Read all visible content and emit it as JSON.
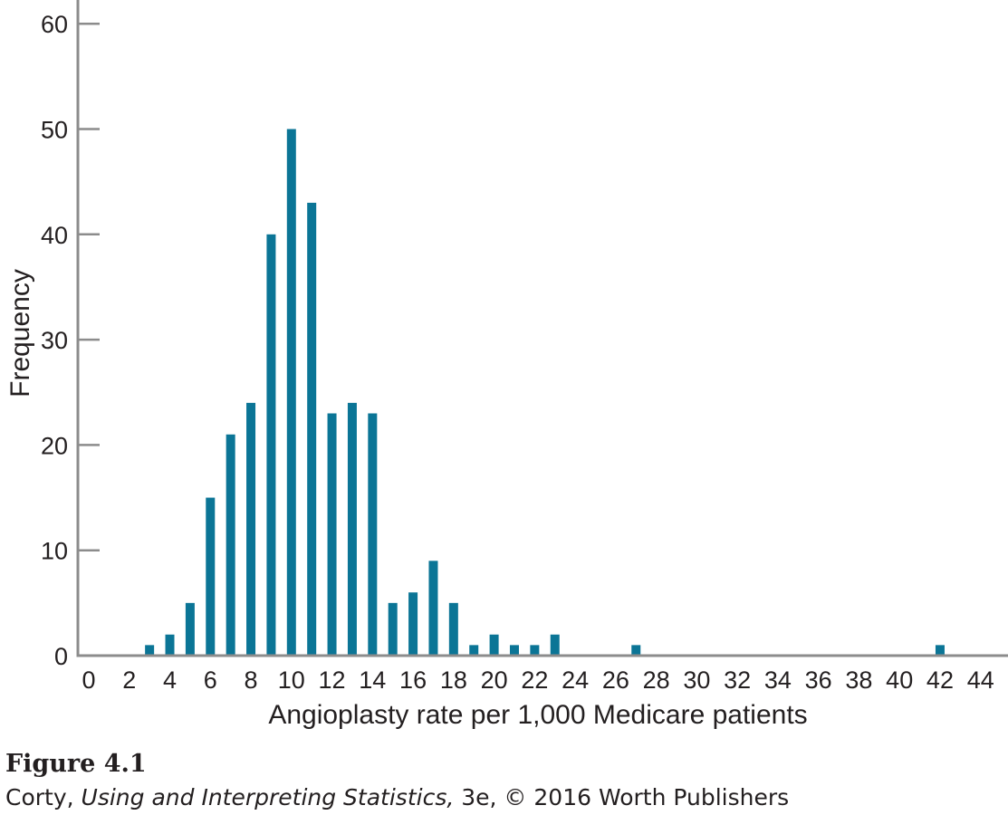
{
  "chart_data": {
    "type": "bar",
    "xlabel": "Angioplasty rate per 1,000 Medicare patients",
    "ylabel": "Frequency",
    "xlim": [
      0,
      45
    ],
    "ylim": [
      0,
      60
    ],
    "x_ticks": [
      0,
      2,
      4,
      6,
      8,
      10,
      12,
      14,
      16,
      18,
      20,
      22,
      24,
      26,
      28,
      30,
      32,
      34,
      36,
      38,
      40,
      42,
      44
    ],
    "y_ticks": [
      0,
      10,
      20,
      30,
      40,
      50,
      60
    ],
    "x": [
      3,
      4,
      5,
      6,
      7,
      8,
      9,
      10,
      11,
      12,
      13,
      14,
      15,
      16,
      17,
      18,
      19,
      20,
      21,
      22,
      23,
      27,
      42
    ],
    "values": [
      1,
      2,
      5,
      15,
      21,
      24,
      40,
      50,
      43,
      23,
      24,
      23,
      5,
      6,
      9,
      5,
      1,
      2,
      1,
      1,
      2,
      1,
      1
    ],
    "bar_color": "#0b7596",
    "axis_color": "#8c8c8c",
    "grid": false
  },
  "caption": {
    "figure_label": "Figure 4.1",
    "author": "Corty,",
    "book_title": "Using and Interpreting Statistics,",
    "edition_publisher": "3e, © 2016 Worth Publishers"
  }
}
